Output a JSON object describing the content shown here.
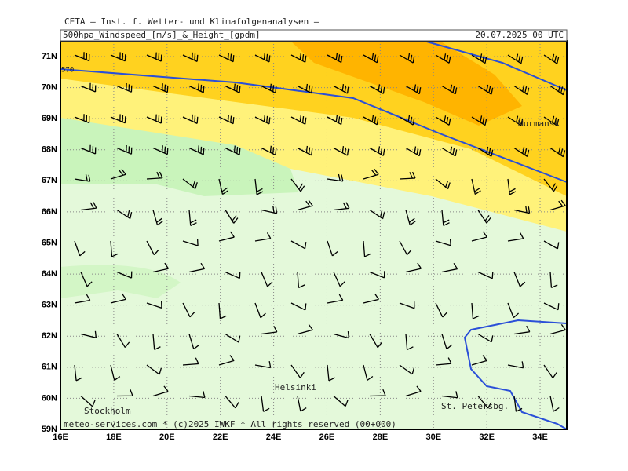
{
  "header": {
    "institute": "CETA – Inst. f. Wetter- und Klimafolgenanalysen –",
    "title": "500hpa_Windspeed_[m/s]_&_Height_[gpdm]",
    "datetime": "20.07.2025 00 UTC"
  },
  "map": {
    "lat_labels": [
      "71N",
      "70N",
      "69N",
      "68N",
      "67N",
      "66N",
      "65N",
      "64N",
      "63N",
      "62N",
      "61N",
      "60N",
      "59N"
    ],
    "lon_labels": [
      "16E",
      "18E",
      "20E",
      "22E",
      "24E",
      "26E",
      "28E",
      "30E",
      "32E",
      "34E"
    ],
    "places": [
      "Murmansk",
      "Helsinki",
      "Stockholm",
      "St. Petersbg."
    ],
    "contour_label": "570",
    "footer": "meteo-services.com * (c)2025 IWKF * All rights reserved (00+000)"
  }
}
